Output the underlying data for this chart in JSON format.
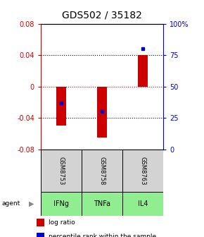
{
  "title": "GDS502 / 35182",
  "categories": [
    "IFNg",
    "TNFa",
    "IL4"
  ],
  "gsm_labels": [
    "GSM8753",
    "GSM8758",
    "GSM8763"
  ],
  "log_ratios": [
    -0.05,
    -0.065,
    0.04
  ],
  "percentile_ranks": [
    37,
    30,
    80
  ],
  "ylim": [
    -0.08,
    0.08
  ],
  "yticks_left": [
    -0.08,
    -0.04,
    0,
    0.04,
    0.08
  ],
  "yticks_right": [
    0,
    25,
    50,
    75,
    100
  ],
  "bar_color": "#cc0000",
  "dot_color": "#0000cc",
  "zero_line_color": "#cc0000",
  "agent_bg_color": "#90EE90",
  "gsm_bg_color": "#d3d3d3",
  "left_axis_color": "#cc0000",
  "right_axis_color": "#0000cc",
  "title_fontsize": 10,
  "tick_fontsize": 7,
  "legend_fontsize": 6.5,
  "bar_width": 0.25
}
